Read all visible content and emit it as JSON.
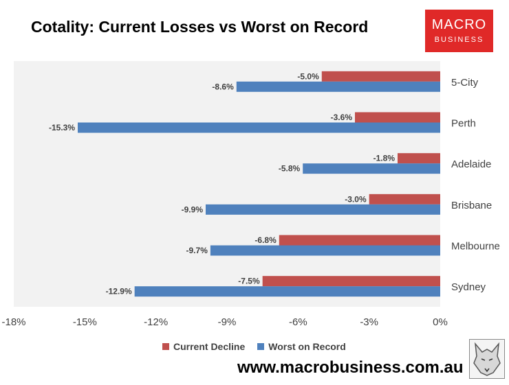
{
  "title": "Cotality: Current Losses vs Worst on Record",
  "logo": {
    "line1": "MACRO",
    "line2": "BUSINESS",
    "color": "#e02928"
  },
  "website": "www.macrobusiness.com.au",
  "colors": {
    "current": "#c0504d",
    "worst": "#4f81bd",
    "plot_bg": "#f2f2f2"
  },
  "chart_data": {
    "type": "bar",
    "orientation": "horizontal",
    "categories": [
      "5-City",
      "Perth",
      "Adelaide",
      "Brisbane",
      "Melbourne",
      "Sydney"
    ],
    "series": [
      {
        "name": "Current Decline",
        "values": [
          -5.0,
          -3.6,
          -1.8,
          -3.0,
          -6.8,
          -7.5
        ],
        "labels": [
          "-5.0%",
          "-3.6%",
          "-1.8%",
          "-3.0%",
          "-6.8%",
          "-7.5%"
        ],
        "color": "#c0504d"
      },
      {
        "name": "Worst on Record",
        "values": [
          -8.6,
          -15.3,
          -5.8,
          -9.9,
          -9.7,
          -12.9
        ],
        "labels": [
          "-8.6%",
          "-15.3%",
          "-5.8%",
          "-9.9%",
          "-9.7%",
          "-12.9%"
        ],
        "color": "#4f81bd"
      }
    ],
    "xlim": [
      -18,
      0
    ],
    "xticks": [
      -18,
      -15,
      -12,
      -9,
      -6,
      -3,
      0
    ],
    "xtick_labels": [
      "-18%",
      "-15%",
      "-12%",
      "-9%",
      "-6%",
      "-3%",
      "0%"
    ],
    "category_axis": "right",
    "grid": false,
    "legend_position": "bottom"
  }
}
